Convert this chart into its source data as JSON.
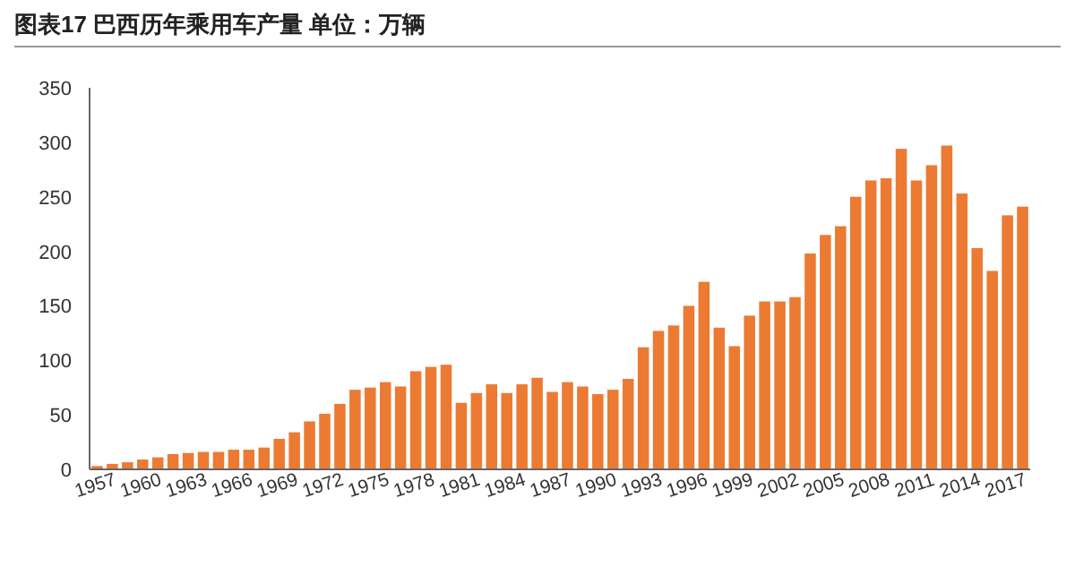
{
  "chart_data": {
    "type": "bar",
    "title": "图表17    巴西历年乘用车产量 单位：万辆",
    "categories": [
      "1957",
      null,
      null,
      "1960",
      null,
      null,
      "1963",
      null,
      null,
      "1966",
      null,
      null,
      "1969",
      null,
      null,
      "1972",
      null,
      null,
      "1975",
      null,
      null,
      "1978",
      null,
      null,
      "1981",
      null,
      null,
      "1984",
      null,
      null,
      "1987",
      null,
      null,
      "1990",
      null,
      null,
      "1993",
      null,
      null,
      "1996",
      null,
      null,
      "1999",
      null,
      null,
      "2002",
      null,
      null,
      "2005",
      null,
      null,
      "2008",
      null,
      null,
      "2011",
      null,
      null,
      "2014",
      null,
      null,
      "2017",
      null
    ],
    "values": [
      3,
      5,
      6.5,
      9,
      11,
      14,
      15,
      16,
      16,
      18,
      18,
      20,
      28,
      34,
      44,
      51,
      60,
      73,
      75,
      80,
      76,
      90,
      94,
      96,
      61,
      70,
      78,
      70,
      78,
      84,
      71,
      80,
      76,
      69,
      73,
      83,
      112,
      127,
      132,
      150,
      172,
      130,
      113,
      141,
      154,
      154,
      158,
      198,
      215,
      223,
      250,
      265,
      267,
      294,
      265,
      279,
      297,
      253,
      203,
      182,
      233,
      241
    ],
    "color": "#ec7a33",
    "ylim": [
      0,
      350
    ],
    "yticks": [
      0,
      50,
      100,
      150,
      200,
      250,
      300,
      350
    ],
    "grid": false
  }
}
